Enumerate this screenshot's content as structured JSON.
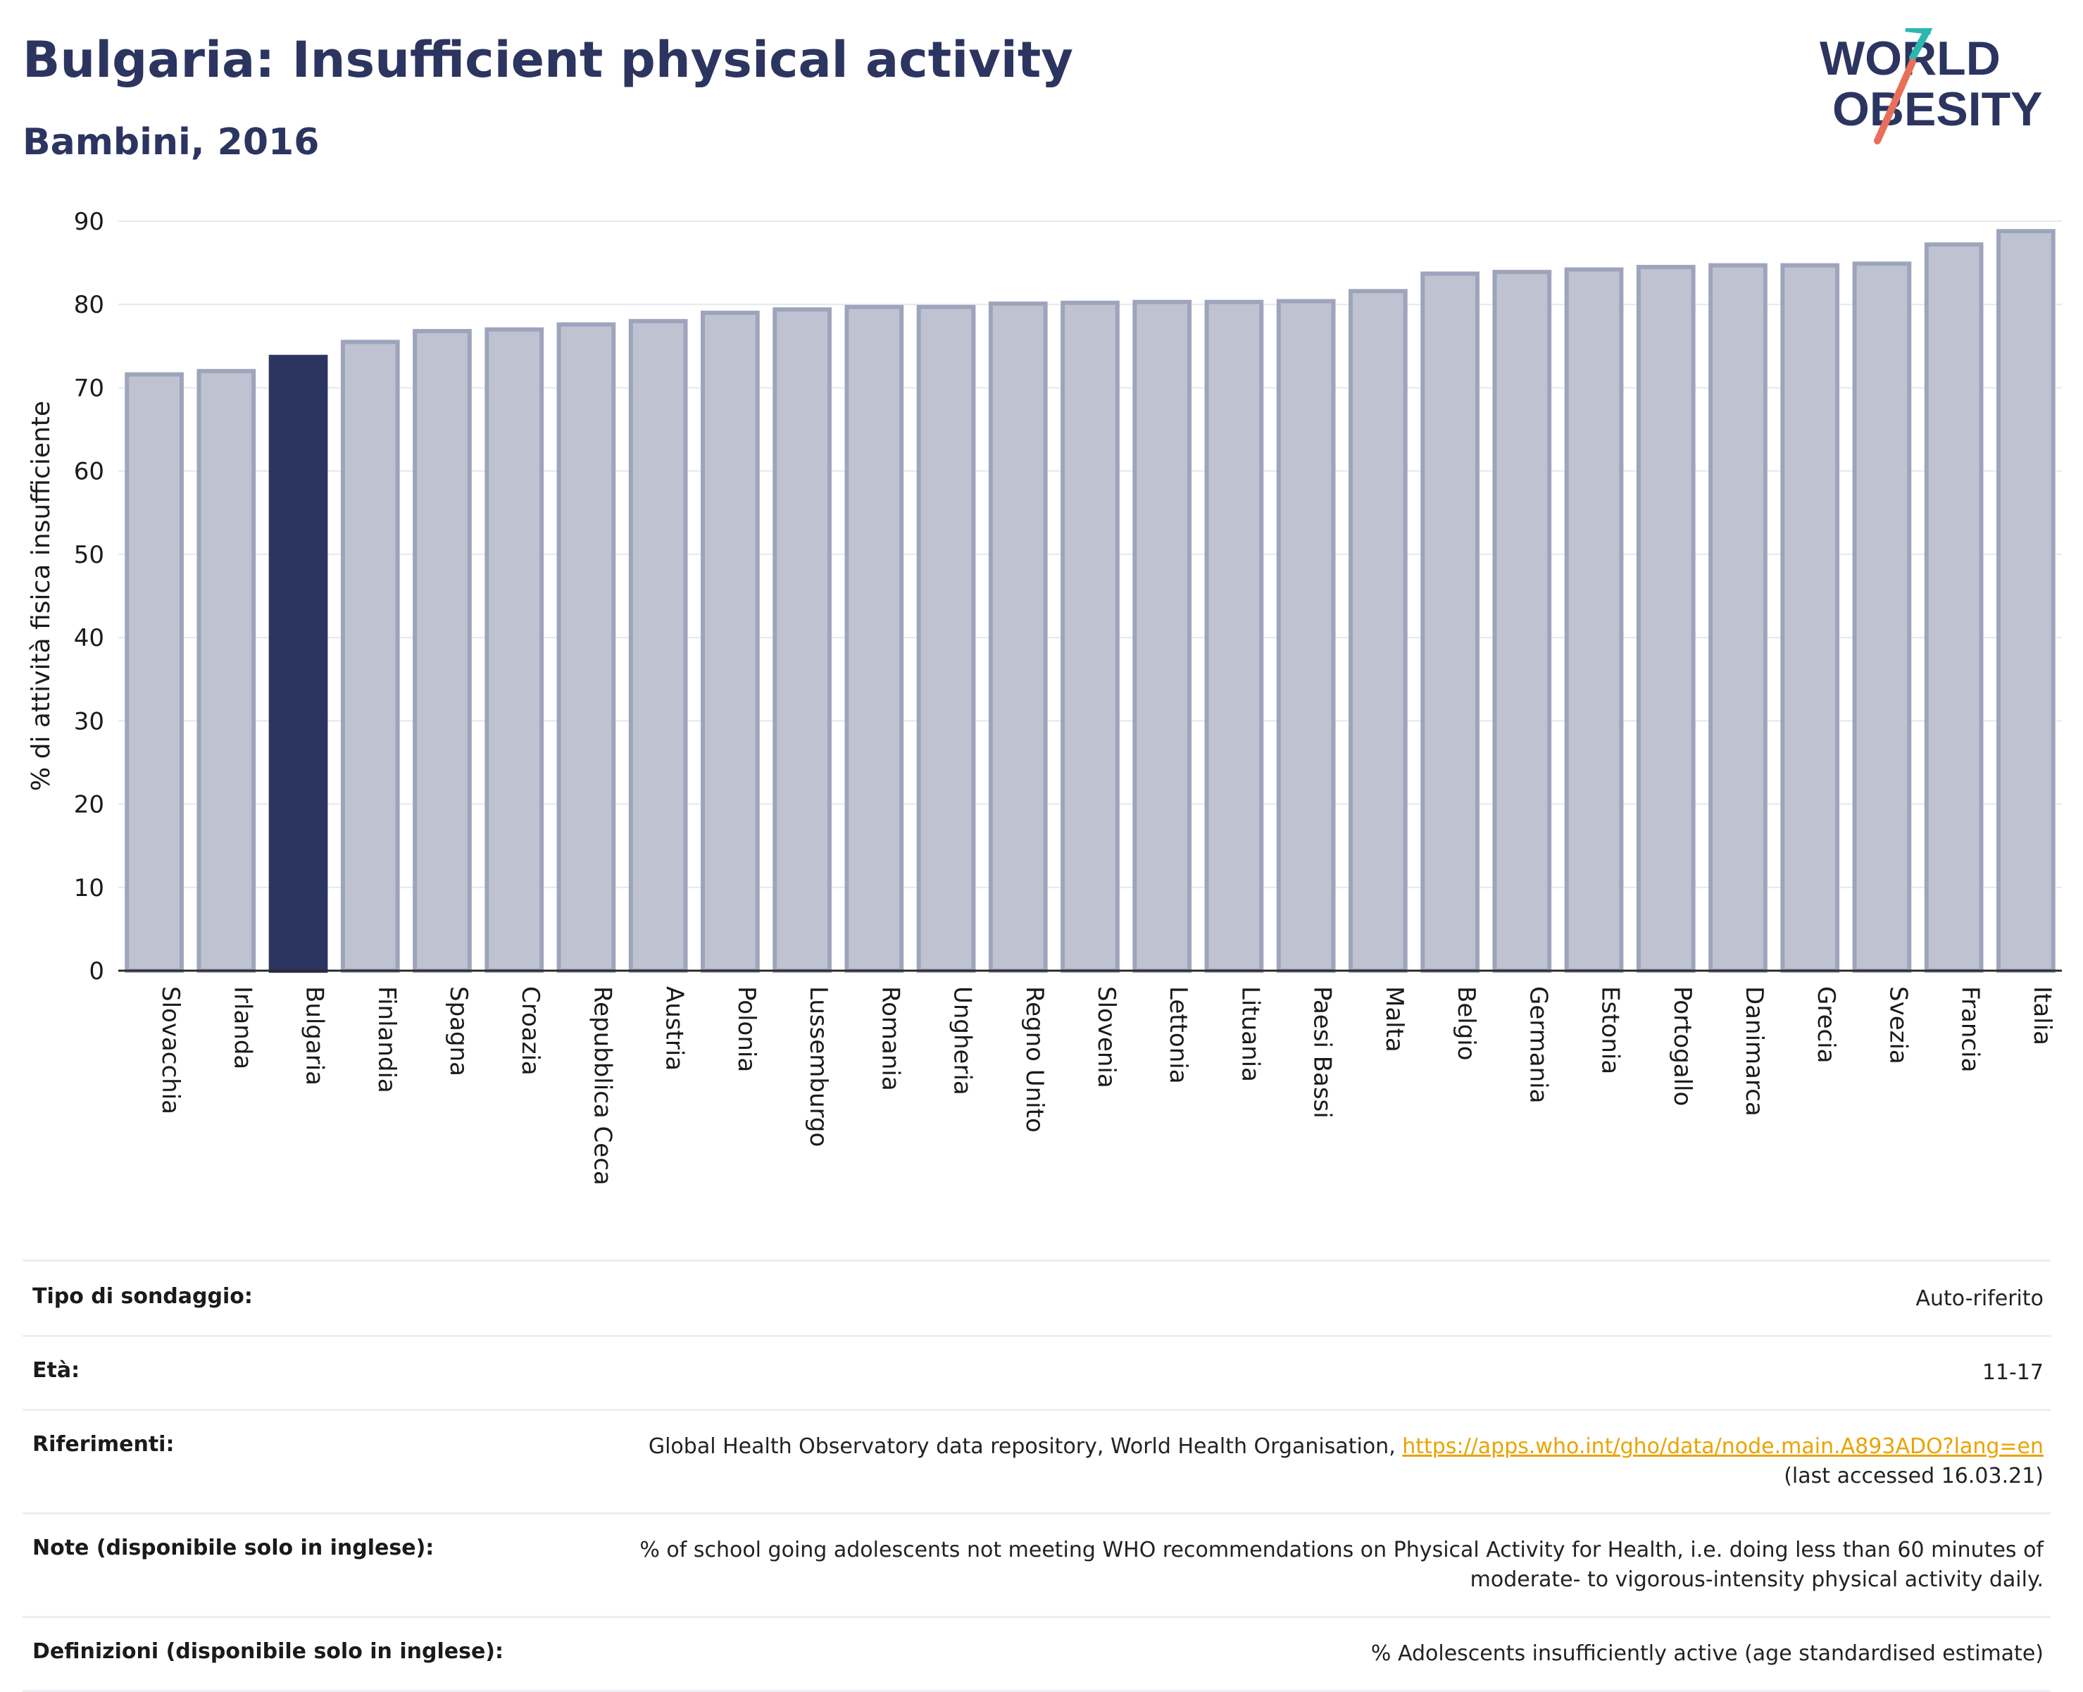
{
  "header": {
    "title": "Bulgaria: Insufficient physical activity",
    "subtitle": "Bambini, 2016"
  },
  "logo": {
    "line1": "WORLD",
    "line2": "OBESITY",
    "accent_teal": "#2ab7b0",
    "accent_coral": "#e8705a"
  },
  "colors": {
    "bar_default": "#bfc3d1",
    "bar_outline": "#9ea4bc",
    "bar_highlight": "#2c3560",
    "title": "#2c3560",
    "link": "#e8a400"
  },
  "chart_data": {
    "type": "bar",
    "title": "Bulgaria: Insufficient physical activity",
    "subtitle": "Bambini, 2016",
    "xlabel": "",
    "ylabel": "% di attività fisica insufficiente",
    "ylim": [
      0,
      90
    ],
    "yticks": [
      0,
      10,
      20,
      30,
      40,
      50,
      60,
      70,
      80,
      90
    ],
    "grid": true,
    "highlight": "Bulgaria",
    "categories": [
      "Slovacchia",
      "Irlanda",
      "Bulgaria",
      "Finlandia",
      "Spagna",
      "Croazia",
      "Repubblica Ceca",
      "Austria",
      "Polonia",
      "Lussemburgo",
      "Romania",
      "Ungheria",
      "Regno Unito",
      "Slovenia",
      "Lettonia",
      "Lituania",
      "Paesi Bassi",
      "Malta",
      "Belgio",
      "Germania",
      "Estonia",
      "Portogallo",
      "Danimarca",
      "Grecia",
      "Svezia",
      "Francia",
      "Italia"
    ],
    "values": [
      71.6,
      72.0,
      73.7,
      75.5,
      76.8,
      77.0,
      77.6,
      78.0,
      79.0,
      79.4,
      79.7,
      79.7,
      80.1,
      80.2,
      80.3,
      80.3,
      80.4,
      81.6,
      83.7,
      83.9,
      84.2,
      84.5,
      84.7,
      84.7,
      84.9,
      87.2,
      88.8
    ]
  },
  "info": {
    "survey_type": {
      "label": "Tipo di sondaggio:",
      "value": "Auto-riferito"
    },
    "age": {
      "label": "Età:",
      "value": "11-17"
    },
    "references": {
      "label": "Riferimenti:",
      "text": "Global Health Observatory data repository, World Health Organisation, ",
      "link": "https://apps.who.int/gho/data/node.main.A893ADO?lang=en",
      "accessed": "(last accessed 16.03.21)"
    },
    "notes": {
      "label": "Note (disponibile solo in inglese):",
      "line1": "% of school going adolescents not meeting WHO recommendations on Physical Activity for Health, i.e. doing less than 60 minutes of",
      "line2": "moderate- to vigorous-intensity physical activity daily."
    },
    "definitions": {
      "label": "Definizioni (disponibile solo in inglese):",
      "value": "% Adolescents insufficiently active (age standardised estimate)"
    }
  }
}
